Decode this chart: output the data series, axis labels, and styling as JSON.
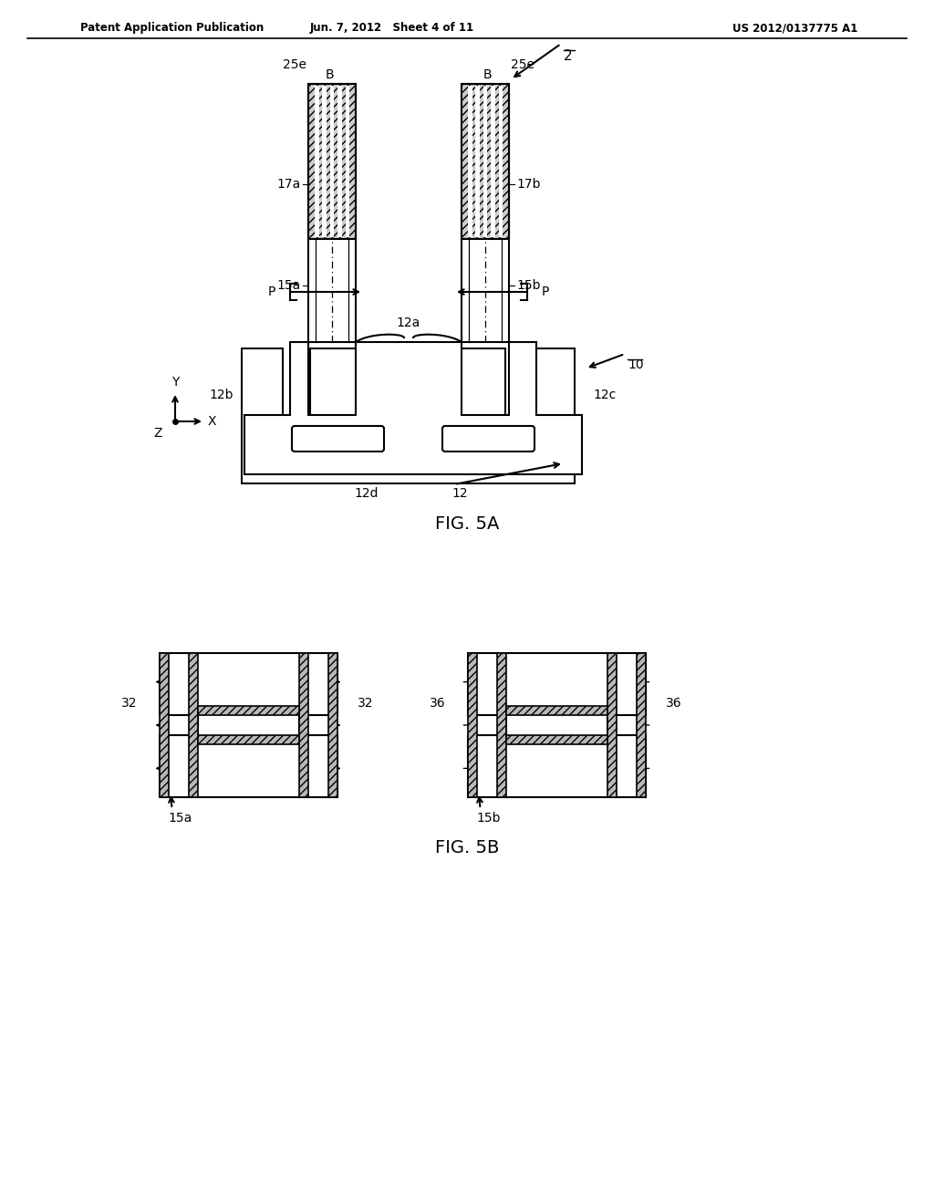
{
  "fig_width": 10.24,
  "fig_height": 13.2,
  "bg_color": "#ffffff",
  "line_color": "#000000",
  "header_left": "Patent Application Publication",
  "header_mid": "Jun. 7, 2012   Sheet 4 of 11",
  "header_right": "US 2012/0137775 A1",
  "fig5a_label": "FIG. 5A",
  "fig5b_label": "FIG. 5B"
}
